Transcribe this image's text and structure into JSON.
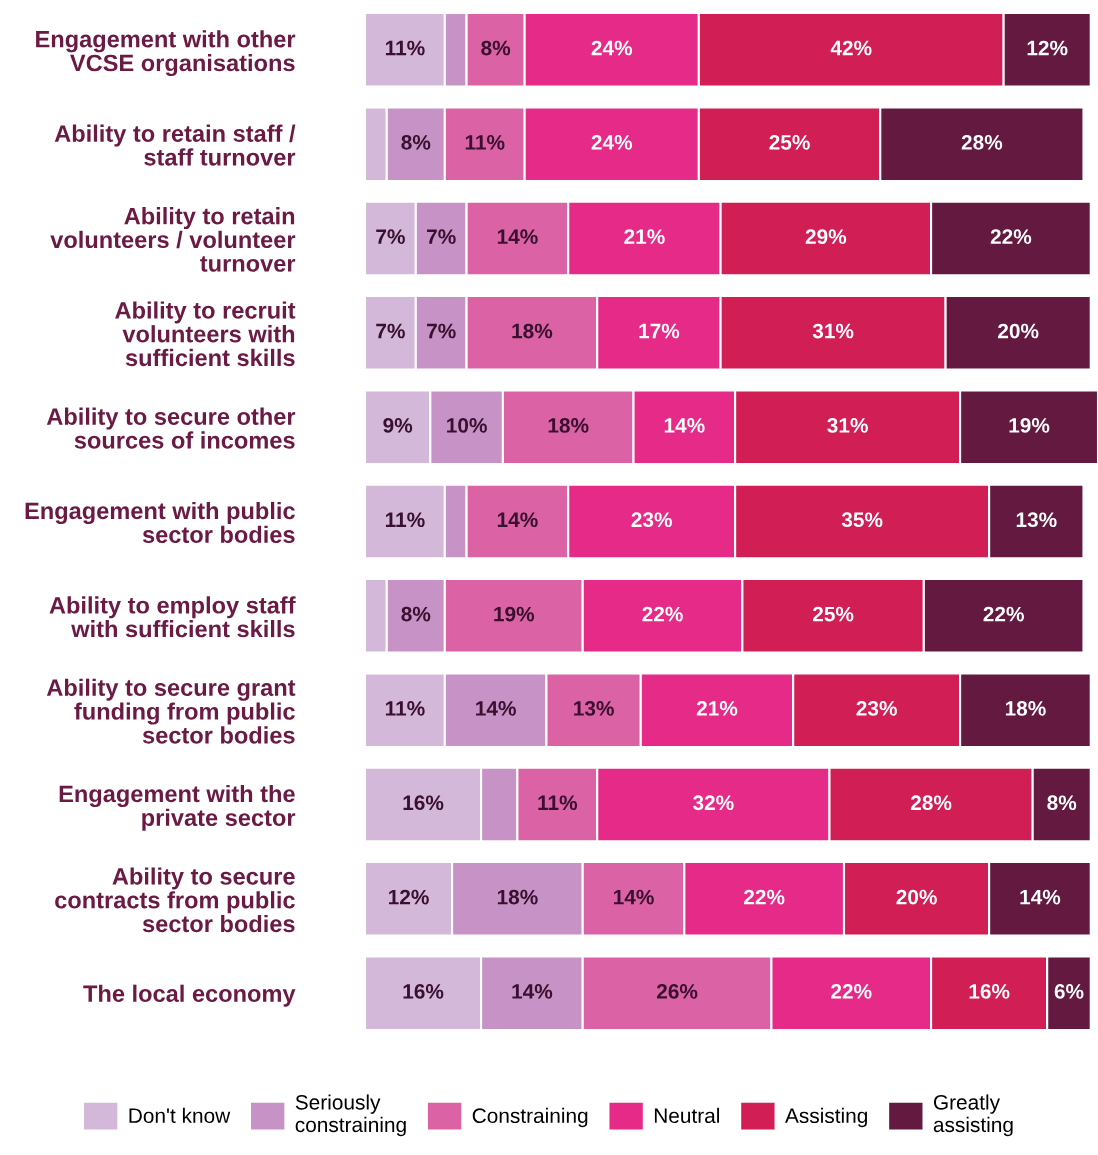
{
  "chart_data": {
    "type": "bar",
    "orientation": "horizontal",
    "stacked": true,
    "legend": "bottom",
    "grid": false,
    "categories": [
      "Engagement with other\nVCSE organisations",
      "Ability to retain staff /\nstaff turnover",
      "Ability to retain\nvolunteers / volunteer\nturnover",
      "Ability to recruit\nvolunteers with\nsufficient skills",
      "Ability to secure other\nsources of incomes",
      "Engagement with public\nsector bodies",
      "Ability to employ staff\nwith sufficient skills",
      "Ability to secure grant\nfunding from public\nsector bodies",
      "Engagement with the\nprivate sector",
      "Ability to secure\ncontracts from public\nsector bodies",
      "The local economy"
    ],
    "series": [
      {
        "name": "Don't know",
        "color": "#d4b8d9",
        "values": [
          11,
          3,
          7,
          7,
          9,
          11,
          3,
          11,
          16,
          12,
          16
        ],
        "value_labels": [
          "11%",
          null,
          "7%",
          "7%",
          "9%",
          "11%",
          null,
          "11%",
          "16%",
          "12%",
          "16%"
        ]
      },
      {
        "name": "Seriously\nconstraining",
        "color": "#c792c5",
        "values": [
          3,
          8,
          7,
          7,
          10,
          3,
          8,
          14,
          5,
          18,
          14
        ],
        "value_labels": [
          null,
          "8%",
          "7%",
          "7%",
          "10%",
          null,
          "8%",
          "14%",
          null,
          "18%",
          "14%"
        ]
      },
      {
        "name": "Constraining",
        "color": "#db62a5",
        "values": [
          8,
          11,
          14,
          18,
          18,
          14,
          19,
          13,
          11,
          14,
          26
        ],
        "value_labels": [
          "8%",
          "11%",
          "14%",
          "18%",
          "18%",
          "14%",
          "19%",
          "13%",
          "11%",
          "14%",
          "26%"
        ]
      },
      {
        "name": "Neutral",
        "color": "#e52b87",
        "values": [
          24,
          24,
          21,
          17,
          14,
          23,
          22,
          21,
          32,
          22,
          22
        ],
        "value_labels": [
          "24%",
          "24%",
          "21%",
          "17%",
          "14%",
          "23%",
          "22%",
          "21%",
          "32%",
          "22%",
          "22%"
        ]
      },
      {
        "name": "Assisting",
        "color": "#d11f56",
        "values": [
          42,
          25,
          29,
          31,
          31,
          35,
          25,
          23,
          28,
          20,
          16
        ],
        "value_labels": [
          "42%",
          "25%",
          "29%",
          "31%",
          "31%",
          "35%",
          "25%",
          "23%",
          "28%",
          "20%",
          "16%"
        ]
      },
      {
        "name": "Greatly\nassisting",
        "color": "#641a40",
        "values": [
          12,
          28,
          22,
          20,
          19,
          13,
          22,
          18,
          8,
          14,
          6
        ],
        "value_labels": [
          "12%",
          "28%",
          "22%",
          "20%",
          "19%",
          "13%",
          "22%",
          "18%",
          "8%",
          "14%",
          "6%"
        ]
      }
    ]
  }
}
